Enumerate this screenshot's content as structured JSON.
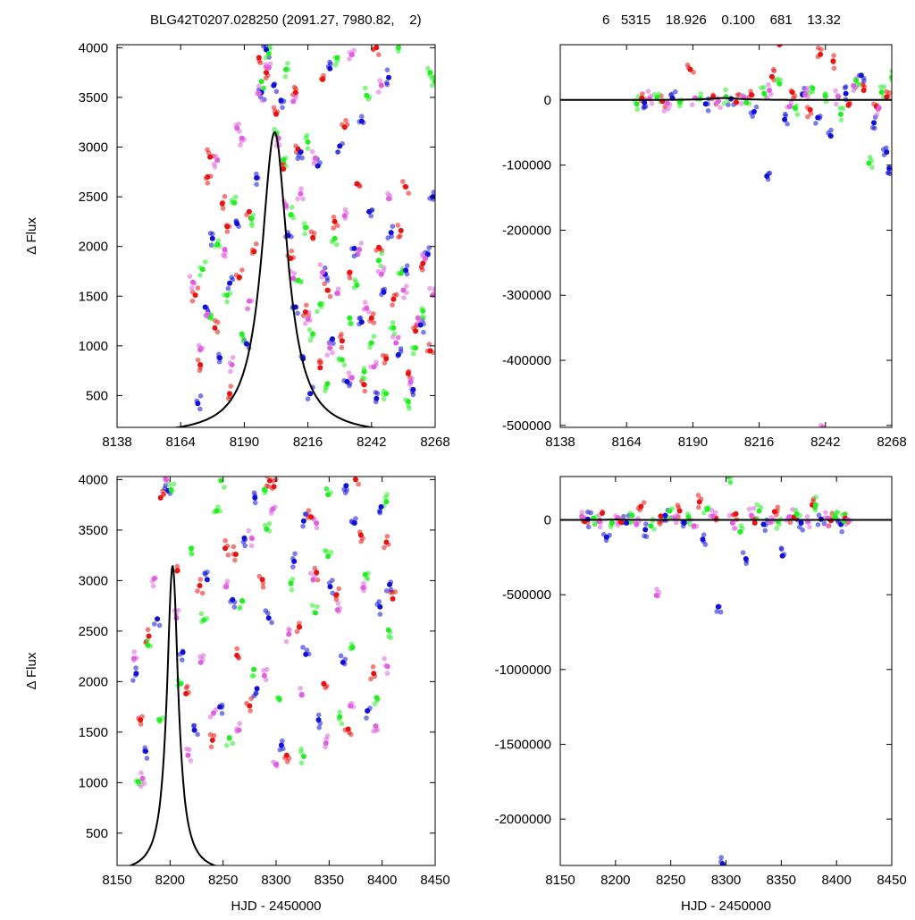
{
  "header": {
    "left": "BLG42T0207.028250 (2091.27, 7980.82,    2)",
    "right": "6   5315    18.926    0.100    681    13.32"
  },
  "colors": {
    "red": "#e8120f",
    "blue": "#1010d8",
    "green": "#22ee22",
    "magenta": "#e060e0",
    "model": "#000000"
  },
  "chart_data": [
    {
      "type": "scatter",
      "panel": "top-left",
      "xlabel": "",
      "ylabel": "Δ Flux",
      "xlim": [
        8138,
        8268
      ],
      "ylim": [
        180,
        4030
      ],
      "xticks": [
        8138,
        8164,
        8190,
        8216,
        8242,
        8268
      ],
      "yticks": [
        500,
        1000,
        1500,
        2000,
        2500,
        3000,
        3500,
        4000
      ],
      "xtick_labels": [
        "8138",
        "8164",
        "8190",
        "8216",
        "8242",
        "8268"
      ],
      "ytick_labels": [
        "500",
        "1000",
        "1500",
        "2000",
        "2500",
        "3000",
        "3500",
        "4000"
      ],
      "model": {
        "t0": 8202.4,
        "peak": 3150,
        "tE": 6.5,
        "base": 100
      },
      "series": [
        {
          "color": "red",
          "x": [
            8170,
            8172,
            8175,
            8178,
            8181,
            8184,
            8188,
            8192,
            8196,
            8199,
            8203,
            8206,
            8209,
            8212,
            8215,
            8218,
            8221,
            8224,
            8227,
            8230,
            8233,
            8236,
            8239,
            8242,
            8245,
            8248,
            8251,
            8254,
            8257,
            8260,
            8263,
            8266,
            8222,
            8231,
            8244,
            8256,
            8211,
            8194,
            8183,
            8176
          ],
          "y": [
            1510,
            810,
            2700,
            1180,
            2430,
            520,
            1690,
            2350,
            3900,
            3750,
            3330,
            2780,
            1880,
            2980,
            1340,
            2090,
            780,
            1560,
            2250,
            1050,
            1740,
            2630,
            610,
            1280,
            1990,
            870,
            1470,
            2160,
            720,
            1150,
            1830,
            950,
            3680,
            3200,
            4000,
            2600,
            3550,
            1950,
            2200,
            2900
          ]
        },
        {
          "color": "blue",
          "x": [
            8171,
            8174,
            8177,
            8180,
            8184,
            8187,
            8191,
            8195,
            8199,
            8202,
            8205,
            8208,
            8211,
            8214,
            8217,
            8220,
            8223,
            8226,
            8229,
            8232,
            8235,
            8238,
            8241,
            8244,
            8247,
            8250,
            8253,
            8256,
            8259,
            8262,
            8265,
            8267,
            8225,
            8238,
            8249,
            8213,
            8197
          ],
          "y": [
            420,
            1390,
            2080,
            880,
            1630,
            2230,
            1020,
            2690,
            3980,
            3620,
            3470,
            2110,
            1390,
            870,
            520,
            2810,
            1720,
            1070,
            3010,
            640,
            1980,
            1240,
            2350,
            470,
            1540,
            2140,
            910,
            1760,
            560,
            1210,
            1920,
            2500,
            3790,
            3260,
            3700,
            2950,
            3550
          ]
        },
        {
          "color": "green",
          "x": [
            8173,
            8176,
            8179,
            8183,
            8186,
            8189,
            8193,
            8197,
            8200,
            8203,
            8206,
            8209,
            8212,
            8215,
            8218,
            8221,
            8224,
            8227,
            8230,
            8233,
            8236,
            8239,
            8242,
            8245,
            8248,
            8251,
            8254,
            8257,
            8260,
            8263,
            8266,
            8268,
            8228,
            8240,
            8253,
            8216,
            8207
          ],
          "y": [
            1770,
            1290,
            2020,
            1510,
            2440,
            1120,
            2280,
            3660,
            3940,
            3130,
            2870,
            2320,
            1660,
            2190,
            1120,
            1420,
            620,
            2080,
            860,
            1280,
            1610,
            740,
            1030,
            1860,
            520,
            1180,
            1730,
            440,
            980,
            1350,
            3750,
            3660,
            3900,
            3520,
            4000,
            3050,
            3780
          ]
        },
        {
          "color": "magenta",
          "x": [
            8169,
            8172,
            8175,
            8179,
            8182,
            8185,
            8189,
            8192,
            8196,
            8200,
            8204,
            8207,
            8210,
            8213,
            8216,
            8219,
            8222,
            8225,
            8228,
            8231,
            8234,
            8237,
            8240,
            8243,
            8246,
            8249,
            8252,
            8255,
            8258,
            8261,
            8264,
            8267,
            8234,
            8246,
            8210,
            8187
          ],
          "y": [
            1640,
            960,
            1320,
            2870,
            1970,
            810,
            3090,
            1450,
            3540,
            3800,
            3090,
            2410,
            1680,
            2530,
            1270,
            2890,
            1740,
            980,
            1530,
            2310,
            680,
            1970,
            1380,
            790,
            1720,
            2480,
            1030,
            1560,
            640,
            1280,
            1880,
            1510,
            3930,
            3620,
            3460,
            3190
          ]
        }
      ]
    },
    {
      "type": "scatter",
      "panel": "top-right",
      "xlabel": "",
      "ylabel": "",
      "xlim": [
        8138,
        8268
      ],
      "ylim": [
        -503000,
        85000
      ],
      "xticks": [
        8138,
        8164,
        8190,
        8216,
        8242,
        8268
      ],
      "yticks": [
        0,
        -100000,
        -200000,
        -300000,
        -400000,
        -500000
      ],
      "xtick_labels": [
        "8138",
        "8164",
        "8190",
        "8216",
        "8242",
        "8268"
      ],
      "ytick_labels": [
        "0",
        "-100000",
        "-200000",
        "-300000",
        "-400000",
        "-500000"
      ],
      "model": {
        "t0": 8202.4,
        "peak": 3150,
        "tE": 6.5,
        "base": 100
      },
      "series": [
        {
          "color": "red",
          "x": [
            8170,
            8178,
            8189,
            8198,
            8207,
            8213,
            8221,
            8224,
            8229,
            8236,
            8240,
            8245,
            8251,
            8257,
            8262,
            8266
          ],
          "y": [
            3000,
            -2000,
            47000,
            5000,
            -3000,
            8000,
            36000,
            85000,
            12000,
            -15000,
            70000,
            60000,
            -8000,
            15000,
            -10000,
            5000
          ]
        },
        {
          "color": "blue",
          "x": [
            8171,
            8182,
            8195,
            8205,
            8214,
            8219,
            8226,
            8233,
            8239,
            8244,
            8250,
            8256,
            8261,
            8266,
            8267
          ],
          "y": [
            -4000,
            3000,
            -6000,
            2000,
            -18000,
            -117000,
            -30000,
            8000,
            -27000,
            -55000,
            10000,
            38000,
            -35000,
            -80000,
            -105000
          ]
        },
        {
          "color": "green",
          "x": [
            8168,
            8176,
            8185,
            8193,
            8203,
            8211,
            8218,
            8224,
            8230,
            8237,
            8242,
            8248,
            8254,
            8259,
            8264,
            8268
          ],
          "y": [
            -6000,
            4000,
            -3000,
            2000,
            5000,
            -4000,
            10000,
            25000,
            -12000,
            18000,
            6000,
            -22000,
            30000,
            -97000,
            12000,
            35000
          ]
        },
        {
          "color": "magenta",
          "x": [
            8173,
            8180,
            8191,
            8200,
            8210,
            8220,
            8228,
            8234,
            8241,
            8247,
            8253,
            8263
          ],
          "y": [
            2000,
            -5000,
            3000,
            -2000,
            4000,
            15000,
            -10000,
            8000,
            -503000,
            5000,
            22000,
            -12000
          ]
        }
      ]
    },
    {
      "type": "scatter",
      "panel": "bottom-left",
      "xlabel": "HJD - 2450000",
      "ylabel": "Δ Flux",
      "xlim": [
        8150,
        8450
      ],
      "ylim": [
        180,
        4030
      ],
      "xticks": [
        8150,
        8200,
        8250,
        8300,
        8350,
        8400,
        8450
      ],
      "yticks": [
        500,
        1000,
        1500,
        2000,
        2500,
        3000,
        3500,
        4000
      ],
      "xtick_labels": [
        "8150",
        "8200",
        "8250",
        "8300",
        "8350",
        "8400",
        "8450"
      ],
      "ytick_labels": [
        "500",
        "1000",
        "1500",
        "2000",
        "2500",
        "3000",
        "3500",
        "4000"
      ],
      "model": {
        "t0": 8202.4,
        "peak": 3150,
        "tE": 6.5,
        "base": 100
      },
      "series": [
        {
          "color": "red",
          "x": [
            8172,
            8180,
            8191,
            8207,
            8215,
            8228,
            8240,
            8252,
            8263,
            8275,
            8287,
            8298,
            8310,
            8322,
            8333,
            8345,
            8357,
            8368,
            8380,
            8392,
            8404,
            8410,
            8262,
            8294,
            8338,
            8375
          ],
          "y": [
            1620,
            2450,
            3820,
            3100,
            1880,
            2950,
            1420,
            3320,
            2260,
            1760,
            3010,
            3930,
            1270,
            2540,
            3630,
            1980,
            2860,
            1530,
            3450,
            2080,
            3380,
            2820,
            3260,
            3990,
            3080,
            4000
          ]
        },
        {
          "color": "blue",
          "x": [
            8168,
            8177,
            8188,
            8198,
            8212,
            8223,
            8235,
            8247,
            8259,
            8270,
            8282,
            8293,
            8305,
            8317,
            8328,
            8340,
            8351,
            8363,
            8374,
            8386,
            8398,
            8407,
            8280,
            8326,
            8366,
            8399
          ],
          "y": [
            2080,
            1310,
            2620,
            3890,
            2290,
            1520,
            3010,
            1750,
            2810,
            3420,
            1930,
            2630,
            1370,
            3190,
            2270,
            1620,
            2940,
            2190,
            3570,
            1710,
            2740,
            2960,
            3820,
            3590,
            3940,
            3730
          ]
        },
        {
          "color": "green",
          "x": [
            8170,
            8179,
            8190,
            8201,
            8210,
            8220,
            8232,
            8244,
            8256,
            8268,
            8279,
            8291,
            8303,
            8314,
            8326,
            8337,
            8349,
            8360,
            8372,
            8384,
            8395,
            8406,
            8248,
            8289,
            8349,
            8404
          ],
          "y": [
            1010,
            2360,
            1620,
            3900,
            1980,
            3320,
            2610,
            3690,
            1440,
            2800,
            2120,
            3510,
            1830,
            2970,
            1260,
            2680,
            3240,
            1650,
            2340,
            3060,
            1840,
            2510,
            3990,
            3900,
            3850,
            3780
          ]
        },
        {
          "color": "magenta",
          "x": [
            8166,
            8174,
            8185,
            8196,
            8206,
            8217,
            8229,
            8241,
            8253,
            8265,
            8277,
            8289,
            8300,
            8312,
            8324,
            8335,
            8347,
            8358,
            8370,
            8382,
            8394,
            8405,
            8297,
            8338
          ],
          "y": [
            2230,
            1040,
            3020,
            4000,
            2630,
            1270,
            2190,
            1690,
            2940,
            1520,
            3420,
            2060,
            1180,
            2470,
            1870,
            3010,
            1390,
            2710,
            1760,
            2930,
            1560,
            2150,
            3710,
            3570
          ]
        }
      ]
    },
    {
      "type": "scatter",
      "panel": "bottom-right",
      "xlabel": "HJD - 2450000",
      "ylabel": "",
      "xlim": [
        8150,
        8450
      ],
      "ylim": [
        -2310000,
        290000
      ],
      "xticks": [
        8150,
        8200,
        8250,
        8300,
        8350,
        8400,
        8450
      ],
      "yticks": [
        0,
        -500000,
        -1000000,
        -1500000,
        -2000000
      ],
      "xtick_labels": [
        "8150",
        "8200",
        "8250",
        "8300",
        "8350",
        "8400",
        "8450"
      ],
      "ytick_labels": [
        "0",
        "-500000",
        "-1000000",
        "-1500000",
        "-2000000"
      ],
      "model": {
        "t0": 8202.4,
        "peak": 3150,
        "tE": 6.5,
        "base": 100
      },
      "series": [
        {
          "color": "red",
          "x": [
            8172,
            8188,
            8205,
            8223,
            8241,
            8258,
            8276,
            8290,
            8309,
            8326,
            8344,
            8361,
            8378,
            8395,
            8408
          ],
          "y": [
            -10000,
            45000,
            -15000,
            90000,
            25000,
            60000,
            120000,
            10000,
            40000,
            -20000,
            55000,
            15000,
            100000,
            -5000,
            10000
          ]
        },
        {
          "color": "blue",
          "x": [
            8175,
            8192,
            8210,
            8227,
            8245,
            8262,
            8279,
            8293,
            8297,
            8318,
            8334,
            8351,
            8368,
            8386,
            8404
          ],
          "y": [
            5000,
            -115000,
            -20000,
            -65000,
            30000,
            -20000,
            -130000,
            -580000,
            -2300000,
            -260000,
            -30000,
            -240000,
            -20000,
            5000,
            -30000
          ]
        },
        {
          "color": "green",
          "x": [
            8180,
            8197,
            8215,
            8232,
            8249,
            8266,
            8283,
            8302,
            8313,
            8330,
            8347,
            8364,
            8381,
            8399,
            8407
          ],
          "y": [
            10000,
            -20000,
            30000,
            -40000,
            60000,
            20000,
            70000,
            290000,
            -80000,
            60000,
            -10000,
            40000,
            100000,
            20000,
            -10000
          ]
        },
        {
          "color": "magenta",
          "x": [
            8170,
            8185,
            8202,
            8219,
            8237,
            8254,
            8271,
            8288,
            8306,
            8323,
            8340,
            8357,
            8374,
            8392,
            8410
          ],
          "y": [
            20000,
            -10000,
            15000,
            -30000,
            -505000,
            10000,
            -40000,
            25000,
            -20000,
            30000,
            -15000,
            20000,
            -10000,
            10000,
            0
          ]
        }
      ]
    }
  ]
}
